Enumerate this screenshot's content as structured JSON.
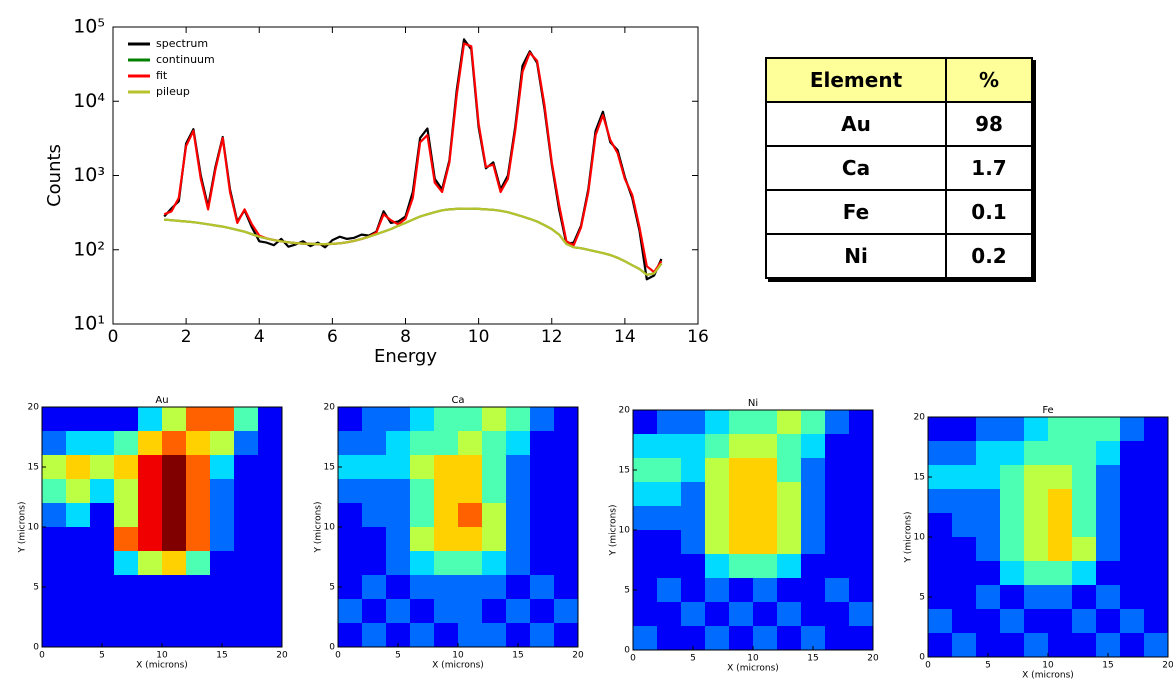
{
  "chart_data": [
    {
      "type": "line",
      "xlabel": "Energy",
      "ylabel": "Counts",
      "yscale": "log",
      "legend": "upper left",
      "xlim": [
        0,
        16
      ],
      "ylim": [
        10,
        100000
      ],
      "xticks": [
        0,
        2,
        4,
        6,
        8,
        10,
        12,
        14,
        16
      ],
      "yticks": [
        {
          "value": 10,
          "label": "10¹"
        },
        {
          "value": 100,
          "label": "10²"
        },
        {
          "value": 1000,
          "label": "10³"
        },
        {
          "value": 10000,
          "label": "10⁴"
        },
        {
          "value": 100000,
          "label": "10⁵"
        }
      ],
      "x": [
        1.4,
        1.6,
        1.8,
        2.0,
        2.2,
        2.4,
        2.6,
        2.8,
        3.0,
        3.2,
        3.4,
        3.6,
        3.8,
        4.0,
        4.2,
        4.4,
        4.6,
        4.8,
        5.0,
        5.2,
        5.4,
        5.6,
        5.8,
        6.0,
        6.2,
        6.4,
        6.6,
        6.8,
        7.0,
        7.2,
        7.4,
        7.6,
        7.8,
        8.0,
        8.2,
        8.4,
        8.6,
        8.8,
        9.0,
        9.2,
        9.4,
        9.6,
        9.8,
        10.0,
        10.2,
        10.4,
        10.6,
        10.8,
        11.0,
        11.2,
        11.4,
        11.6,
        11.8,
        12.0,
        12.2,
        12.4,
        12.6,
        12.8,
        13.0,
        13.2,
        13.4,
        13.6,
        13.8,
        14.0,
        14.2,
        14.4,
        14.6,
        14.8,
        15.0
      ],
      "series": [
        {
          "name": "spectrum",
          "color": "#000000",
          "values": [
            280,
            360,
            450,
            2700,
            4200,
            1000,
            380,
            1300,
            3300,
            650,
            240,
            340,
            200,
            130,
            125,
            115,
            140,
            110,
            118,
            130,
            112,
            125,
            108,
            135,
            150,
            140,
            145,
            160,
            155,
            175,
            330,
            230,
            240,
            280,
            600,
            3200,
            4300,
            900,
            650,
            1600,
            14000,
            68000,
            50000,
            4500,
            1250,
            1500,
            650,
            1000,
            4500,
            30000,
            47000,
            33000,
            8000,
            1400,
            350,
            120,
            125,
            210,
            650,
            4000,
            7200,
            2800,
            2200,
            950,
            500,
            180,
            40,
            45,
            75
          ]
        },
        {
          "name": "continuum",
          "color": "#008000",
          "values": [
            255,
            250,
            245,
            240,
            235,
            228,
            220,
            212,
            205,
            195,
            185,
            175,
            162,
            150,
            142,
            135,
            130,
            126,
            123,
            121,
            120,
            119,
            119,
            120,
            122,
            126,
            132,
            140,
            150,
            162,
            175,
            190,
            210,
            230,
            255,
            280,
            300,
            320,
            340,
            350,
            355,
            358,
            358,
            355,
            350,
            345,
            335,
            320,
            300,
            280,
            260,
            240,
            215,
            190,
            160,
            120,
            108,
            105,
            100,
            95,
            90,
            85,
            78,
            70,
            62,
            55,
            46,
            48,
            65
          ]
        },
        {
          "name": "fit",
          "color": "#ff0000",
          "values": [
            300,
            330,
            500,
            2500,
            4000,
            900,
            350,
            1200,
            3200,
            600,
            230,
            350,
            220,
            155,
            142,
            135,
            130,
            126,
            123,
            121,
            120,
            119,
            119,
            120,
            122,
            126,
            132,
            140,
            150,
            170,
            300,
            250,
            220,
            260,
            500,
            2800,
            3500,
            800,
            600,
            1500,
            12000,
            60000,
            55000,
            5000,
            1300,
            1400,
            600,
            900,
            4000,
            25000,
            45000,
            35000,
            9000,
            1500,
            400,
            130,
            115,
            200,
            600,
            3500,
            6500,
            3000,
            2000,
            900,
            550,
            200,
            60,
            50,
            70
          ]
        },
        {
          "name": "pileup",
          "color": "#b8c22c",
          "values": [
            255,
            250,
            245,
            240,
            235,
            228,
            220,
            212,
            205,
            195,
            185,
            175,
            162,
            150,
            142,
            135,
            130,
            126,
            123,
            121,
            120,
            119,
            119,
            120,
            122,
            126,
            132,
            140,
            150,
            162,
            175,
            190,
            210,
            230,
            255,
            280,
            300,
            320,
            340,
            350,
            355,
            358,
            358,
            355,
            350,
            345,
            335,
            320,
            300,
            280,
            260,
            240,
            215,
            190,
            160,
            120,
            108,
            105,
            100,
            95,
            90,
            85,
            78,
            70,
            62,
            55,
            46,
            48,
            65
          ]
        }
      ]
    },
    {
      "type": "heatmap",
      "title": "Au",
      "xlabel": "X (microns)",
      "ylabel": "Y (microns)",
      "xlim": [
        0,
        20
      ],
      "ylim": [
        0,
        20
      ],
      "xticks": [
        0,
        5,
        10,
        15,
        20
      ],
      "yticks": [
        0,
        5,
        10,
        15,
        20
      ],
      "values": [
        [
          0,
          0,
          0,
          0,
          2,
          4,
          6,
          6,
          3,
          0
        ],
        [
          1,
          2,
          2,
          3,
          5,
          6,
          5,
          4,
          1,
          0
        ],
        [
          4,
          5,
          4,
          5,
          7,
          8,
          6,
          2,
          0,
          0
        ],
        [
          3,
          4,
          2,
          4,
          7,
          8,
          6,
          1,
          0,
          0
        ],
        [
          1,
          2,
          0,
          4,
          7,
          8,
          6,
          1,
          0,
          0
        ],
        [
          0,
          0,
          0,
          6,
          7,
          8,
          6,
          1,
          0,
          0
        ],
        [
          0,
          0,
          0,
          2,
          4,
          5,
          3,
          0,
          0,
          0
        ],
        [
          0,
          0,
          0,
          0,
          0,
          0,
          0,
          0,
          0,
          0
        ],
        [
          0,
          0,
          0,
          0,
          0,
          0,
          0,
          0,
          0,
          0
        ],
        [
          0,
          0,
          0,
          0,
          0,
          0,
          0,
          0,
          0,
          0
        ]
      ]
    },
    {
      "type": "heatmap",
      "title": "Ca",
      "xlabel": "X (microns)",
      "ylabel": "Y (microns)",
      "xlim": [
        0,
        20
      ],
      "ylim": [
        0,
        20
      ],
      "xticks": [
        0,
        5,
        10,
        15,
        20
      ],
      "yticks": [
        0,
        5,
        10,
        15,
        20
      ],
      "values": [
        [
          0,
          1,
          1,
          2,
          3,
          3,
          4,
          3,
          1,
          0
        ],
        [
          1,
          1,
          2,
          3,
          3,
          4,
          3,
          2,
          0,
          0
        ],
        [
          2,
          2,
          2,
          4,
          5,
          5,
          3,
          1,
          0,
          0
        ],
        [
          1,
          1,
          1,
          3,
          5,
          5,
          3,
          1,
          0,
          0
        ],
        [
          0,
          1,
          1,
          3,
          5,
          6,
          4,
          1,
          0,
          0
        ],
        [
          0,
          0,
          1,
          4,
          5,
          5,
          4,
          1,
          0,
          0
        ],
        [
          0,
          0,
          1,
          2,
          3,
          3,
          2,
          1,
          0,
          0
        ],
        [
          0,
          1,
          0,
          1,
          1,
          1,
          1,
          0,
          1,
          0
        ],
        [
          1,
          0,
          1,
          0,
          1,
          1,
          0,
          1,
          0,
          1
        ],
        [
          0,
          1,
          0,
          1,
          0,
          1,
          1,
          0,
          1,
          0
        ]
      ]
    },
    {
      "type": "heatmap",
      "title": "Ni",
      "xlabel": "X (microns)",
      "ylabel": "Y (microns)",
      "xlim": [
        0,
        20
      ],
      "ylim": [
        0,
        20
      ],
      "xticks": [
        0,
        5,
        10,
        15,
        20
      ],
      "yticks": [
        0,
        5,
        10,
        15,
        20
      ],
      "values": [
        [
          0,
          1,
          1,
          2,
          3,
          3,
          4,
          3,
          1,
          0
        ],
        [
          2,
          2,
          2,
          3,
          4,
          4,
          3,
          2,
          0,
          0
        ],
        [
          3,
          3,
          2,
          4,
          5,
          5,
          3,
          1,
          0,
          0
        ],
        [
          2,
          2,
          1,
          4,
          5,
          5,
          4,
          1,
          0,
          0
        ],
        [
          1,
          1,
          1,
          4,
          5,
          5,
          4,
          1,
          0,
          0
        ],
        [
          0,
          0,
          1,
          4,
          5,
          5,
          4,
          1,
          0,
          0
        ],
        [
          0,
          0,
          0,
          2,
          3,
          3,
          2,
          0,
          0,
          0
        ],
        [
          0,
          1,
          0,
          1,
          0,
          1,
          0,
          0,
          1,
          0
        ],
        [
          0,
          0,
          1,
          0,
          1,
          0,
          1,
          0,
          0,
          1
        ],
        [
          1,
          0,
          0,
          1,
          0,
          1,
          0,
          1,
          0,
          0
        ]
      ]
    },
    {
      "type": "heatmap",
      "title": "Fe",
      "xlabel": "X (microns)",
      "ylabel": "Y (microns)",
      "xlim": [
        0,
        20
      ],
      "ylim": [
        0,
        20
      ],
      "xticks": [
        0,
        5,
        10,
        15,
        20
      ],
      "yticks": [
        0,
        5,
        10,
        15,
        20
      ],
      "values": [
        [
          0,
          0,
          1,
          1,
          2,
          3,
          3,
          3,
          1,
          0
        ],
        [
          1,
          1,
          2,
          2,
          3,
          3,
          3,
          2,
          0,
          0
        ],
        [
          2,
          2,
          2,
          3,
          4,
          4,
          3,
          1,
          0,
          0
        ],
        [
          1,
          1,
          1,
          3,
          4,
          5,
          3,
          1,
          0,
          0
        ],
        [
          0,
          1,
          1,
          3,
          4,
          5,
          3,
          1,
          0,
          0
        ],
        [
          0,
          0,
          1,
          3,
          4,
          5,
          4,
          1,
          0,
          0
        ],
        [
          0,
          0,
          0,
          2,
          3,
          3,
          2,
          0,
          0,
          0
        ],
        [
          0,
          0,
          1,
          0,
          1,
          1,
          0,
          1,
          0,
          0
        ],
        [
          1,
          0,
          0,
          1,
          0,
          0,
          1,
          0,
          1,
          0
        ],
        [
          0,
          1,
          0,
          0,
          1,
          0,
          0,
          1,
          0,
          1
        ]
      ]
    }
  ],
  "table": {
    "columns": [
      "Element",
      "%"
    ],
    "rows": [
      [
        "Au",
        98
      ],
      [
        "Ca",
        1.7
      ],
      [
        "Fe",
        0.1
      ],
      [
        "Ni",
        0.2
      ]
    ]
  }
}
